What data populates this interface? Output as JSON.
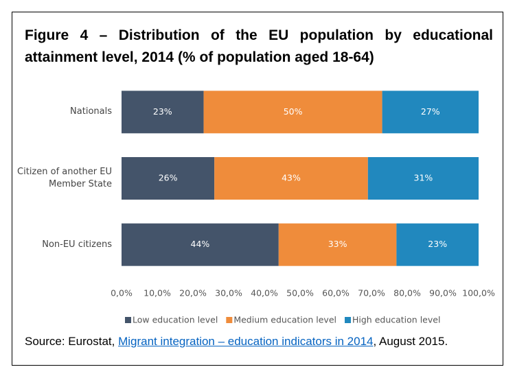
{
  "chart_data": {
    "type": "stacked_bar_horizontal",
    "title": "Figure 4 – Distribution of the EU population by educational attainment level, 2014 (% of population aged 18-64)",
    "categories": [
      "Nationals",
      "Citizen of another EU Member State",
      "Non-EU citizens"
    ],
    "series": [
      {
        "name": "Low education level",
        "color": "#44546a",
        "values": [
          23,
          26,
          44
        ],
        "value_labels": [
          "23%",
          "26%",
          "44%"
        ]
      },
      {
        "name": "Medium education level",
        "color": "#ef8c3b",
        "values": [
          50,
          43,
          33
        ],
        "value_labels": [
          "50%",
          "43%",
          "33%"
        ]
      },
      {
        "name": "High education level",
        "color": "#2188be",
        "values": [
          27,
          31,
          23
        ],
        "value_labels": [
          "27%",
          "31%",
          "23%"
        ]
      }
    ],
    "xlim": [
      0,
      100
    ],
    "xticks": [
      {
        "value": 0,
        "label": "0,0%"
      },
      {
        "value": 10,
        "label": "10,0%"
      },
      {
        "value": 20,
        "label": "20,0%"
      },
      {
        "value": 30,
        "label": "30,0%"
      },
      {
        "value": 40,
        "label": "40,0%"
      },
      {
        "value": 50,
        "label": "50,0%"
      },
      {
        "value": 60,
        "label": "60,0%"
      },
      {
        "value": 70,
        "label": "70,0%"
      },
      {
        "value": 80,
        "label": "80,0%"
      },
      {
        "value": 90,
        "label": "90,0%"
      },
      {
        "value": 100,
        "label": "100,0%"
      }
    ],
    "legend": "bottom"
  },
  "source": {
    "prefix": "Source: Eurostat,",
    "link": "Migrant integration – education indicators in 2014",
    "suffix": ", August 2015."
  }
}
